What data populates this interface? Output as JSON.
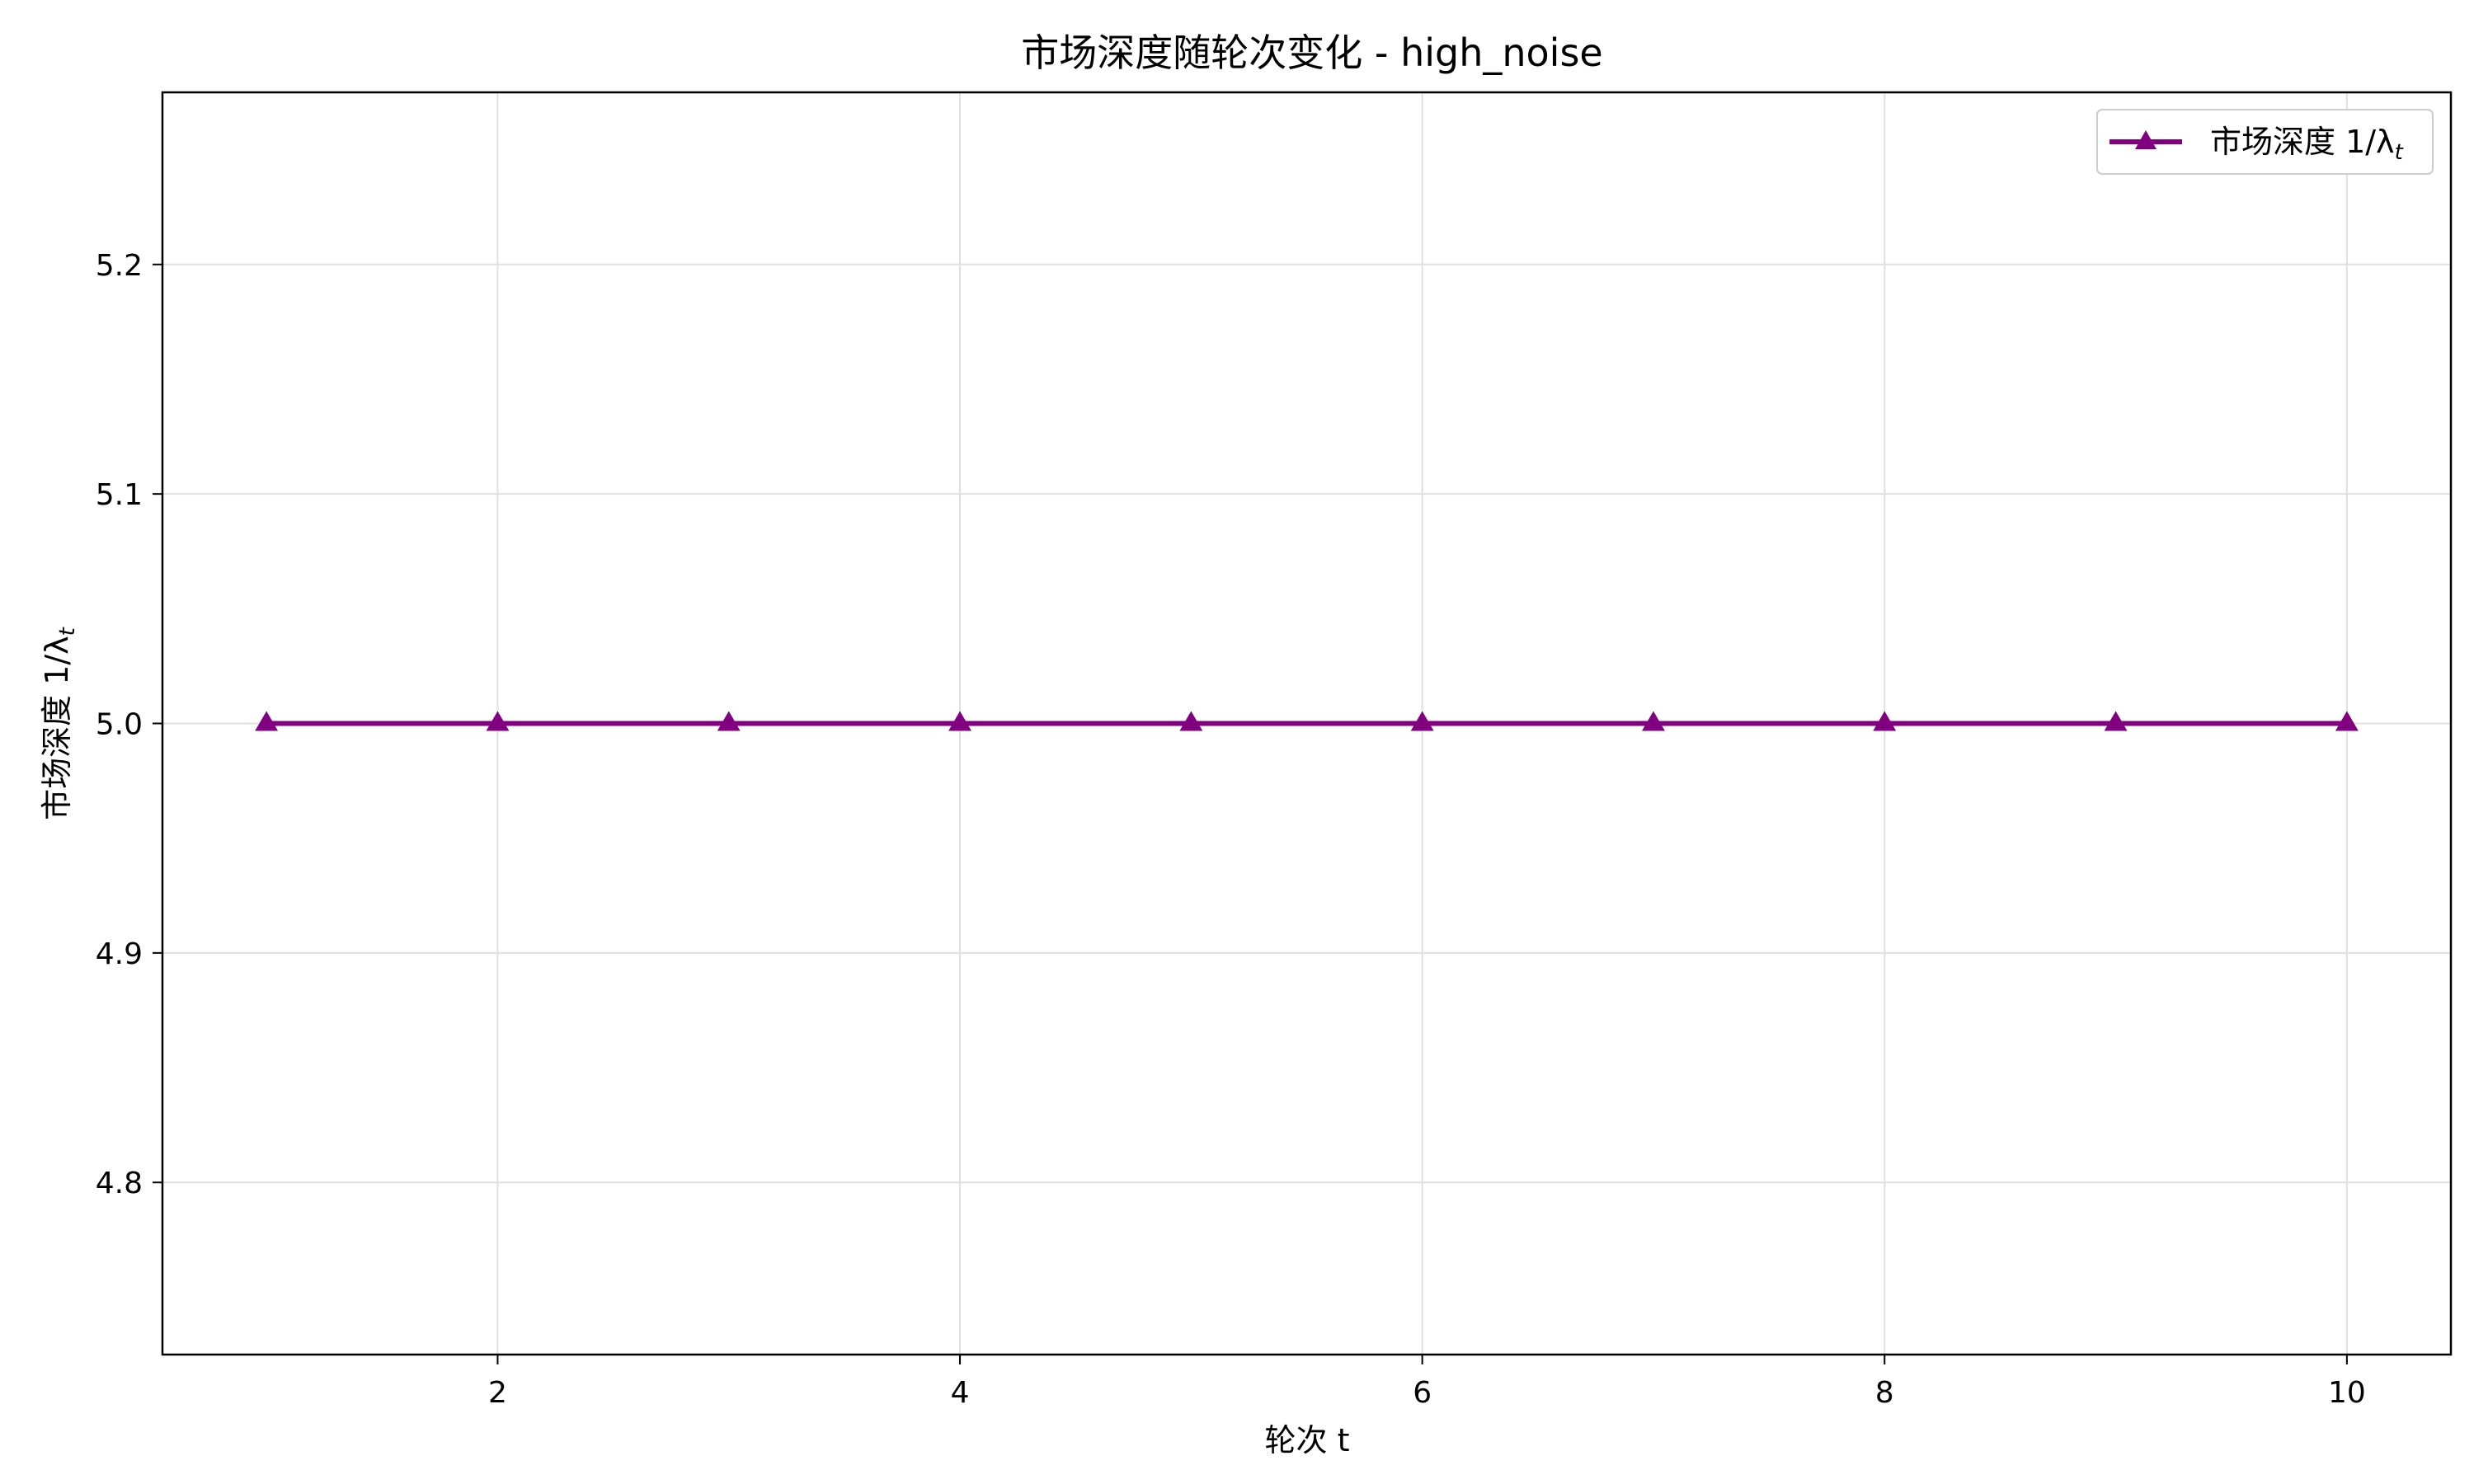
{
  "chart_data": {
    "type": "line",
    "title": "市场深度随轮次变化 - high_noise",
    "xlabel": "轮次 t",
    "ylabel_main": "市场深度 1/λ",
    "ylabel_sub": "t",
    "x": [
      1,
      2,
      3,
      4,
      5,
      6,
      7,
      8,
      9,
      10
    ],
    "series": [
      {
        "name_main": "市场深度 1/λ",
        "name_sub": "t",
        "values": [
          5.0,
          5.0,
          5.0,
          5.0,
          5.0,
          5.0,
          5.0,
          5.0,
          5.0,
          5.0
        ],
        "color": "#800080",
        "marker": "triangle-up"
      }
    ],
    "xlim": [
      0.55,
      10.45
    ],
    "ylim": [
      4.725,
      5.275
    ],
    "xticks": [
      2,
      4,
      6,
      8,
      10
    ],
    "yticks": [
      4.8,
      4.9,
      5.0,
      5.1,
      5.2
    ],
    "grid": true,
    "legend_position": "top-right"
  }
}
